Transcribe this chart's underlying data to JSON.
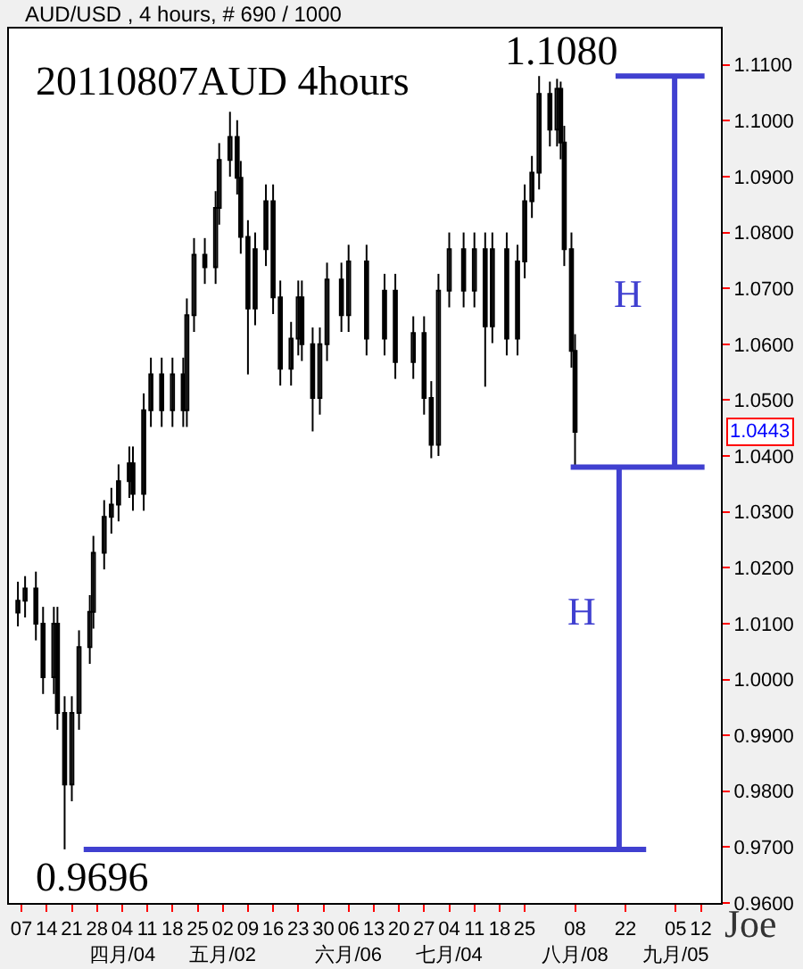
{
  "chart_data": {
    "type": "candlestick",
    "title": "20110807AUD 4hours",
    "subtitle": "AUD/USD , 4 hours, # 690 / 1000",
    "color": "#000000",
    "x": [
      "2011-03-06",
      "2011-03-08",
      "2011-03-11",
      "2011-03-13",
      "2011-03-16",
      "2011-03-17",
      "2011-03-19",
      "2011-03-21",
      "2011-03-23",
      "2011-03-26",
      "2011-03-27",
      "2011-03-30",
      "2011-04-01",
      "2011-04-03",
      "2011-04-06",
      "2011-04-07",
      "2011-04-10",
      "2011-04-12",
      "2011-04-15",
      "2011-04-18",
      "2011-04-21",
      "2011-04-22",
      "2011-04-24",
      "2011-04-27",
      "2011-04-30",
      "2011-05-01",
      "2011-05-04",
      "2011-05-06",
      "2011-05-07",
      "2011-05-09",
      "2011-05-11",
      "2011-05-14",
      "2011-05-16",
      "2011-05-18",
      "2011-05-21",
      "2011-05-23",
      "2011-05-24",
      "2011-05-27",
      "2011-05-29",
      "2011-05-31",
      "2011-06-04",
      "2011-06-06",
      "2011-06-11",
      "2011-06-16",
      "2011-06-19",
      "2011-06-24",
      "2011-06-27",
      "2011-06-29",
      "2011-07-01",
      "2011-07-04",
      "2011-07-08",
      "2011-07-11",
      "2011-07-14",
      "2011-07-16",
      "2011-07-20",
      "2011-07-23",
      "2011-07-25",
      "2011-07-27",
      "2011-07-29",
      "2011-08-01",
      "2011-08-03",
      "2011-08-04",
      "2011-08-05",
      "2011-08-07",
      "2011-08-08"
    ],
    "ohlc": [
      [
        1.012,
        1.0175,
        1.0095,
        1.0141
      ],
      [
        1.0141,
        1.0185,
        1.0111,
        1.0163
      ],
      [
        1.0163,
        1.0193,
        1.007,
        1.01
      ],
      [
        1.01,
        1.013,
        0.9974,
        1.0004
      ],
      [
        1.0004,
        1.013,
        0.9974,
        1.01
      ],
      [
        1.01,
        1.013,
        0.991,
        0.994
      ],
      [
        0.994,
        0.997,
        0.9696,
        0.9812
      ],
      [
        0.9812,
        0.997,
        0.9782,
        0.994
      ],
      [
        0.994,
        1.0088,
        0.991,
        1.0058
      ],
      [
        1.0058,
        1.0151,
        1.0028,
        1.0121
      ],
      [
        1.0121,
        1.0257,
        1.0091,
        1.0227
      ],
      [
        1.0227,
        1.0321,
        1.0197,
        1.0291
      ],
      [
        1.0291,
        1.0343,
        1.0261,
        1.0313
      ],
      [
        1.0313,
        1.0385,
        1.0283,
        1.0355
      ],
      [
        1.0355,
        1.0417,
        1.0325,
        1.0387
      ],
      [
        1.0387,
        1.0417,
        1.0302,
        1.0332
      ],
      [
        1.0332,
        1.0512,
        1.0302,
        1.0482
      ],
      [
        1.0482,
        1.0576,
        1.0452,
        1.0546
      ],
      [
        1.0546,
        1.0576,
        1.0452,
        1.0482
      ],
      [
        1.0482,
        1.0576,
        1.0452,
        1.0546
      ],
      [
        1.0546,
        1.0576,
        1.0452,
        1.0482
      ],
      [
        1.0482,
        1.0682,
        1.0452,
        1.0652
      ],
      [
        1.0652,
        1.079,
        1.0622,
        1.076
      ],
      [
        1.076,
        1.079,
        1.0708,
        1.0738
      ],
      [
        1.0738,
        1.0874,
        1.0708,
        1.0844
      ],
      [
        1.0844,
        1.096,
        1.0814,
        1.093
      ],
      [
        1.093,
        1.1016,
        1.09,
        1.0971
      ],
      [
        1.0971,
        1.1001,
        1.0868,
        1.0898
      ],
      [
        1.0898,
        1.0928,
        1.0762,
        1.0792
      ],
      [
        1.0792,
        1.0822,
        1.0546,
        1.0664
      ],
      [
        1.0664,
        1.08,
        1.0634,
        1.077
      ],
      [
        1.077,
        1.0886,
        1.074,
        1.0856
      ],
      [
        1.0856,
        1.0886,
        1.0654,
        1.0684
      ],
      [
        1.0684,
        1.0714,
        1.0526,
        1.0556
      ],
      [
        1.0556,
        1.064,
        1.0526,
        1.061
      ],
      [
        1.061,
        1.0714,
        1.058,
        1.0684
      ],
      [
        1.0684,
        1.0714,
        1.057,
        1.06
      ],
      [
        1.06,
        1.063,
        1.0444,
        1.0504
      ],
      [
        1.0504,
        1.063,
        1.0474,
        1.06
      ],
      [
        1.06,
        1.0746,
        1.057,
        1.0716
      ],
      [
        1.0716,
        1.0746,
        1.0622,
        1.0652
      ],
      [
        1.0652,
        1.0778,
        1.0622,
        1.0748
      ],
      [
        1.0748,
        1.0778,
        1.058,
        1.061
      ],
      [
        1.061,
        1.0726,
        1.058,
        1.0696
      ],
      [
        1.0696,
        1.0726,
        1.0538,
        1.0568
      ],
      [
        1.0568,
        1.065,
        1.0538,
        1.062
      ],
      [
        1.062,
        1.065,
        1.0474,
        1.0504
      ],
      [
        1.0504,
        1.0534,
        1.0396,
        1.042
      ],
      [
        1.042,
        1.0726,
        1.04,
        1.0696
      ],
      [
        1.0696,
        1.08,
        1.0666,
        1.077
      ],
      [
        1.077,
        1.08,
        1.0666,
        1.0696
      ],
      [
        1.0696,
        1.08,
        1.0666,
        1.077
      ],
      [
        1.077,
        1.08,
        1.0524,
        1.0632
      ],
      [
        1.0632,
        1.08,
        1.0602,
        1.077
      ],
      [
        1.077,
        1.08,
        1.058,
        1.061
      ],
      [
        1.061,
        1.0778,
        1.058,
        1.0748
      ],
      [
        1.0748,
        1.0886,
        1.0718,
        1.0856
      ],
      [
        1.0856,
        1.0937,
        1.0826,
        1.0907
      ],
      [
        1.0907,
        1.108,
        1.0877,
        1.1048
      ],
      [
        1.1048,
        1.107,
        1.0954,
        1.0984
      ],
      [
        1.0984,
        1.1075,
        1.0954,
        1.1057
      ],
      [
        1.1057,
        1.107,
        1.0931,
        1.0961
      ],
      [
        1.0961,
        1.0991,
        1.074,
        1.077
      ],
      [
        1.077,
        1.08,
        1.0558,
        1.0588
      ],
      [
        1.0588,
        1.0618,
        1.038,
        1.0443
      ]
    ],
    "xlim": [
      "2011-03-03T12:00",
      "2011-09-17T14:00"
    ],
    "xticks": [
      {
        "value": "2011-03-07",
        "label": "07"
      },
      {
        "value": "2011-03-14",
        "label": "14"
      },
      {
        "value": "2011-03-21",
        "label": "21"
      },
      {
        "value": "2011-03-28",
        "label": "28"
      },
      {
        "value": "2011-04-04",
        "label": "04\n四月/04"
      },
      {
        "value": "2011-04-11",
        "label": "11"
      },
      {
        "value": "2011-04-18",
        "label": "18"
      },
      {
        "value": "2011-04-25",
        "label": "25"
      },
      {
        "value": "2011-05-02",
        "label": "02\n五月/02"
      },
      {
        "value": "2011-05-09",
        "label": "09"
      },
      {
        "value": "2011-05-16",
        "label": "16"
      },
      {
        "value": "2011-05-23",
        "label": "23"
      },
      {
        "value": "2011-05-30",
        "label": "30"
      },
      {
        "value": "2011-06-06",
        "label": "06\n六月/06"
      },
      {
        "value": "2011-06-13",
        "label": "13"
      },
      {
        "value": "2011-06-20",
        "label": "20"
      },
      {
        "value": "2011-06-27",
        "label": "27"
      },
      {
        "value": "2011-07-04",
        "label": "04\n七月/04"
      },
      {
        "value": "2011-07-11",
        "label": "11"
      },
      {
        "value": "2011-07-18",
        "label": "18"
      },
      {
        "value": "2011-07-25",
        "label": "25"
      },
      {
        "value": "2011-08-08",
        "label": "08\n八月/08"
      },
      {
        "value": "2011-08-22",
        "label": "22"
      },
      {
        "value": "2011-09-05",
        "label": "05\n九月/05"
      },
      {
        "value": "2011-09-12",
        "label": "12"
      }
    ],
    "ylim": [
      0.96,
      1.1165
    ],
    "yticks": [
      {
        "value": 0.96,
        "label": "0.9600"
      },
      {
        "value": 0.97,
        "label": "0.9700"
      },
      {
        "value": 0.98,
        "label": "0.9800"
      },
      {
        "value": 0.99,
        "label": "0.9900"
      },
      {
        "value": 1.0,
        "label": "1.0000"
      },
      {
        "value": 1.01,
        "label": "1.0100"
      },
      {
        "value": 1.02,
        "label": "1.0200"
      },
      {
        "value": 1.03,
        "label": "1.0300"
      },
      {
        "value": 1.04,
        "label": "1.0400"
      },
      {
        "value": 1.05,
        "label": "1.0500"
      },
      {
        "value": 1.06,
        "label": "1.0600"
      },
      {
        "value": 1.07,
        "label": "1.0700"
      },
      {
        "value": 1.08,
        "label": "1.0800"
      },
      {
        "value": 1.09,
        "label": "1.0900"
      },
      {
        "value": 1.1,
        "label": "1.1000"
      },
      {
        "value": 1.11,
        "label": "1.1100"
      }
    ],
    "ref_lines": [
      {
        "axis": "y",
        "value": 1.108,
        "color": "#4040d0"
      },
      {
        "axis": "y",
        "value": 1.038,
        "color": "#4040d0"
      },
      {
        "axis": "y",
        "value": 0.9696,
        "color": "#4040d0"
      }
    ],
    "annotations": [
      {
        "text": "1.1080",
        "x": "2011-07-29",
        "y": 1.108
      },
      {
        "text": "0.9696",
        "x": "2011-03-19",
        "y": 0.9696
      },
      "1.0443",
      "H",
      "H",
      "Joe"
    ],
    "grid": false,
    "legend": false
  }
}
